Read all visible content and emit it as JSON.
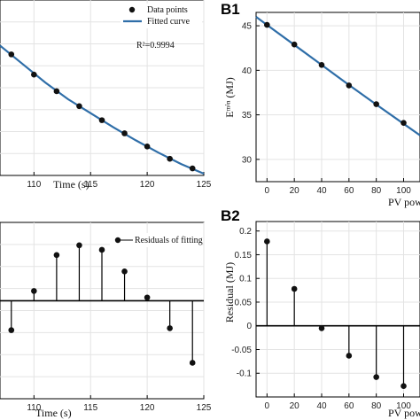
{
  "chart_data": [
    {
      "id": "A1",
      "type": "line",
      "panel_label": "",
      "xlabel": "Time (s)",
      "ylabel": "",
      "xlim": [
        107,
        125
      ],
      "ylim": [
        0,
        10
      ],
      "x_ticks": [
        110,
        115,
        120,
        125
      ],
      "points": {
        "name": "Data points",
        "x": [
          108,
          110,
          112,
          114,
          116,
          118,
          120,
          122,
          124
        ],
        "y": [
          6.9,
          5.75,
          4.8,
          3.95,
          3.15,
          2.4,
          1.65,
          0.95,
          0.4
        ]
      },
      "fit": {
        "name": "Fitted curve",
        "x": [
          107,
          109,
          111,
          113,
          115,
          117,
          119,
          121,
          123,
          125
        ],
        "y": [
          7.4,
          6.35,
          5.3,
          4.35,
          3.55,
          2.75,
          2.0,
          1.3,
          0.65,
          0.1
        ]
      },
      "annotation": "R²=0.9994",
      "legend": "top-right",
      "grid": true
    },
    {
      "id": "B1",
      "type": "line",
      "panel_label": "B1",
      "xlabel": "PV pow",
      "ylabel": "Eᵐⁱⁿ (MJ)",
      "xlim": [
        -8,
        112
      ],
      "ylim": [
        27.5,
        46.5
      ],
      "x_ticks": [
        0,
        20,
        40,
        60,
        80,
        100
      ],
      "y_ticks": [
        30,
        35,
        40,
        45
      ],
      "points": {
        "x": [
          0,
          20,
          40,
          60,
          80,
          100
        ],
        "y": [
          45.1,
          42.9,
          40.6,
          38.3,
          36.2,
          34.1
        ]
      },
      "fit": {
        "x": [
          -8,
          0,
          20,
          40,
          60,
          80,
          100,
          112
        ],
        "y": [
          46.0,
          45.1,
          42.85,
          40.6,
          38.35,
          36.15,
          34.0,
          32.7
        ]
      },
      "grid": true
    },
    {
      "id": "A2",
      "type": "stem",
      "panel_label": "",
      "xlabel": "Time (s)",
      "ylabel": "",
      "xlim": [
        107,
        125
      ],
      "ylim": [
        -1.5,
        1.2
      ],
      "x_ticks": [
        110,
        115,
        120,
        125
      ],
      "series": [
        {
          "name": "Residuals of fitting",
          "x": [
            108,
            110,
            112,
            114,
            116,
            118,
            120,
            122,
            124
          ],
          "y": [
            -0.45,
            0.15,
            0.7,
            0.85,
            0.78,
            0.45,
            0.05,
            -0.42,
            -0.95
          ]
        }
      ],
      "legend": "top-right",
      "grid": true
    },
    {
      "id": "B2",
      "type": "stem",
      "panel_label": "B2",
      "xlabel": "PV pow",
      "ylabel": "Residual (MJ)",
      "xlim": [
        -8,
        112
      ],
      "ylim": [
        -0.15,
        0.22
      ],
      "x_ticks": [
        0,
        20,
        40,
        60,
        80,
        100
      ],
      "y_ticks": [
        -0.1,
        -0.05,
        0,
        0.05,
        0.1,
        0.15,
        0.2
      ],
      "y_tick_labels": [
        "-0.1",
        "-0.05",
        "0",
        "0.05",
        "0.1",
        "0.15",
        "0.2"
      ],
      "series": [
        {
          "x": [
            0,
            20,
            40,
            60,
            80,
            100
          ],
          "y": [
            0.178,
            0.078,
            -0.005,
            -0.063,
            -0.108,
            -0.127
          ]
        }
      ],
      "grid": true
    }
  ],
  "colors": {
    "fit": "#2f6ea8",
    "marker": "#111111",
    "grid": "#e3e3e3",
    "axis": "#000000"
  }
}
